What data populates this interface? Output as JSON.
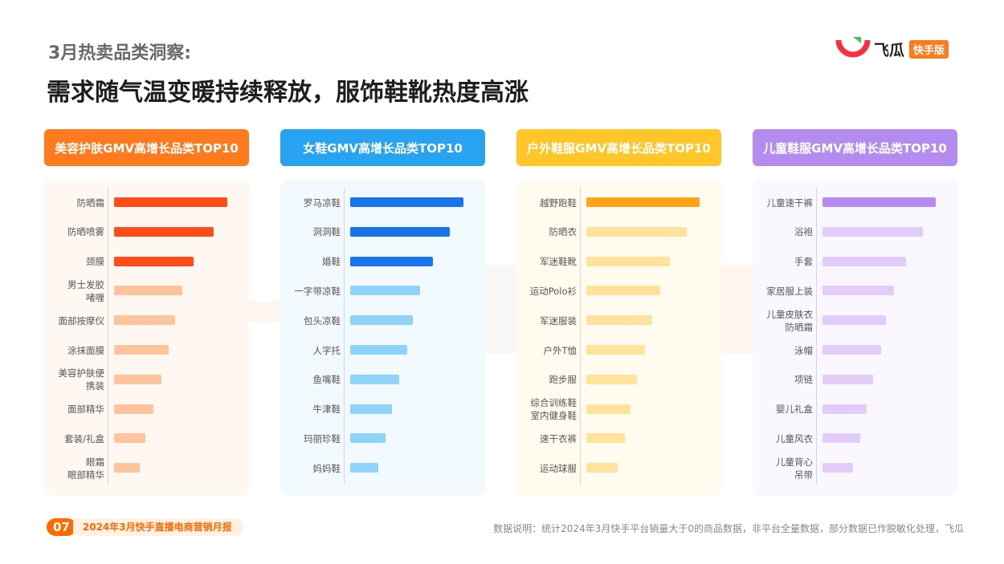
{
  "header": {
    "subtitle": "3月热卖品类洞察:",
    "title": "需求随气温变暖持续释放，服饰鞋靴热度高涨"
  },
  "logo": {
    "text": "飞瓜",
    "tag": "快手版"
  },
  "footer": {
    "page_number": "07",
    "report_name": "2024年3月快手直播电商营销月报",
    "note": "数据说明：统计2024年3月快手平台销量大于0的商品数据，非平台全量数据，部分数据已作脱敏化处理，飞瓜"
  },
  "colors": {
    "beauty_header": "#ff7a1f",
    "beauty_top": "#ff4d1a",
    "beauty_rest": "#ffc49c",
    "beauty_panel": "#fff8f2",
    "shoes_header": "#27a3f2",
    "shoes_top": "#1a73e8",
    "shoes_rest": "#8fd3fa",
    "shoes_panel": "#f2f9ff",
    "outdoor_header": "#ffc629",
    "outdoor_top": "#ffa31a",
    "outdoor_rest": "#ffe29c",
    "outdoor_panel": "#fffcef",
    "kids_header": "#b48cf0",
    "kids_top": "#b78af2",
    "kids_rest": "#e2cdfa",
    "kids_panel": "#faf7fe"
  },
  "chart_data": [
    {
      "type": "bar",
      "orientation": "horizontal",
      "title": "美容护肤GMV高增长品类TOP10",
      "categories": [
        "防晒霜",
        "防晒喷雾",
        "颈膜",
        "男士发胶\n啫喱",
        "面部按摩仪",
        "涂抹面膜",
        "美容护肤便\n携装",
        "面部精华",
        "套装/礼盒",
        "眼霜\n眼部精华"
      ],
      "values": [
        10,
        8.8,
        7,
        6,
        5.4,
        4.8,
        4.2,
        3.5,
        2.8,
        2.3
      ],
      "highlight_count": 3
    },
    {
      "type": "bar",
      "orientation": "horizontal",
      "title": "女鞋GMV高增长品类TOP10",
      "categories": [
        "罗马凉鞋",
        "洞洞鞋",
        "婚鞋",
        "一字带凉鞋",
        "包头凉鞋",
        "人字托",
        "鱼嘴鞋",
        "牛津鞋",
        "玛丽珍鞋",
        "妈妈鞋"
      ],
      "values": [
        10,
        8.8,
        7.3,
        6.2,
        5.5,
        5,
        4.3,
        3.7,
        3.1,
        2.5
      ],
      "highlight_count": 3
    },
    {
      "type": "bar",
      "orientation": "horizontal",
      "title": "户外鞋服GMV高增长品类TOP10",
      "categories": [
        "越野跑鞋",
        "防晒衣",
        "军迷鞋靴",
        "运动Polo衫",
        "军迷服装",
        "户外T恤",
        "跑步服",
        "综合训练鞋\n室内健身鞋",
        "速干衣裤",
        "运动球服"
      ],
      "values": [
        10,
        8.9,
        7.4,
        6.5,
        5.8,
        5.2,
        4.5,
        3.9,
        3.4,
        2.8
      ],
      "highlight_count": 1
    },
    {
      "type": "bar",
      "orientation": "horizontal",
      "title": "儿童鞋服GMV高增长品类TOP10",
      "categories": [
        "儿童速干裤",
        "浴袍",
        "手套",
        "家居服上装",
        "儿童皮肤衣\n防晒霜",
        "泳帽",
        "项链",
        "婴儿礼盒",
        "儿童风衣",
        "儿童背心\n吊带"
      ],
      "values": [
        10,
        8.9,
        7.4,
        6.3,
        5.6,
        5.2,
        4.5,
        3.9,
        3.3,
        2.7
      ],
      "highlight_count": 1
    }
  ]
}
